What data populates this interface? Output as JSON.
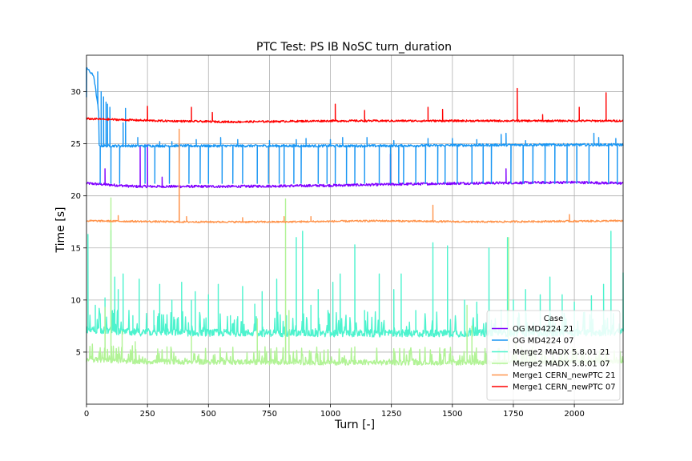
{
  "chart_data": {
    "type": "line",
    "title": "PTC Test: PS IB NoSC turn_duration",
    "xlabel": "Turn [-]",
    "ylabel": "Time [s]",
    "xlim": [
      0,
      2200
    ],
    "ylim": [
      0,
      33.5
    ],
    "xticks": [
      0,
      250,
      500,
      750,
      1000,
      1250,
      1500,
      1750,
      2000
    ],
    "yticks": [
      5,
      10,
      15,
      20,
      25,
      30
    ],
    "grid": true,
    "legend": {
      "title": "Case",
      "placement": "lower-right"
    },
    "series": [
      {
        "name": "OG MD4224 21",
        "color": "#8000ff",
        "baseline": [
          [
            0,
            21.2
          ],
          [
            200,
            20.9
          ],
          [
            600,
            20.9
          ],
          [
            1000,
            21.0
          ],
          [
            1500,
            21.2
          ],
          [
            2000,
            21.3
          ],
          [
            2200,
            21.2
          ]
        ],
        "noise": 0.12,
        "spikes": [
          [
            75,
            22.6
          ],
          [
            220,
            24.8
          ],
          [
            250,
            24.9
          ],
          [
            310,
            21.8
          ],
          [
            1245,
            24.0
          ],
          [
            1720,
            22.6
          ]
        ]
      },
      {
        "name": "OG MD4224 07",
        "color": "#1996f3",
        "baseline": [
          [
            0,
            32.4
          ],
          [
            10,
            32.0
          ],
          [
            30,
            31.5
          ],
          [
            50,
            28.0
          ],
          [
            52,
            24.8
          ],
          [
            600,
            24.8
          ],
          [
            1200,
            24.8
          ],
          [
            1800,
            24.9
          ],
          [
            2200,
            24.9
          ]
        ],
        "noise": 0.12,
        "spikes": [
          [
            0,
            29.5
          ],
          [
            45,
            31.9
          ],
          [
            60,
            30.0
          ],
          [
            70,
            29.5
          ],
          [
            80,
            29.0
          ],
          [
            85,
            28.8
          ],
          [
            95,
            28.5
          ],
          [
            150,
            27.0
          ],
          [
            160,
            28.4
          ],
          [
            210,
            25.6
          ],
          [
            300,
            25.2
          ],
          [
            350,
            25.2
          ],
          [
            450,
            25.4
          ],
          [
            550,
            25.6
          ],
          [
            620,
            25.4
          ],
          [
            750,
            25.3
          ],
          [
            860,
            25.4
          ],
          [
            900,
            25.5
          ],
          [
            1000,
            25.4
          ],
          [
            1050,
            25.6
          ],
          [
            1150,
            25.6
          ],
          [
            1260,
            25.3
          ],
          [
            1400,
            25.5
          ],
          [
            1500,
            25.5
          ],
          [
            1600,
            25.4
          ],
          [
            1700,
            25.9
          ],
          [
            1720,
            26.0
          ],
          [
            1800,
            25.3
          ],
          [
            2080,
            26.0
          ],
          [
            2100,
            25.6
          ],
          [
            2170,
            25.5
          ]
        ],
        "dips": [
          55,
          80,
          100,
          135,
          210,
          240,
          280,
          300,
          340,
          380,
          420,
          465,
          500,
          555,
          600,
          640,
          700,
          745,
          790,
          810,
          850,
          880,
          900,
          950,
          985,
          1020,
          1065,
          1100,
          1140,
          1200,
          1245,
          1280,
          1300,
          1350,
          1390,
          1440,
          1470,
          1520,
          1580,
          1625,
          1660,
          1700,
          1740,
          1790,
          1830,
          1880,
          1920,
          1970,
          2010,
          2060,
          2100,
          2140,
          2175
        ]
      },
      {
        "name": "Merge2 MADX 5.8.01 21",
        "color": "#4df3ce",
        "baseline": [
          [
            0,
            7.2
          ],
          [
            200,
            6.9
          ],
          [
            1000,
            6.8
          ],
          [
            1500,
            6.8
          ],
          [
            2200,
            6.9
          ]
        ],
        "noise": 0.35,
        "spikes": [
          [
            5,
            16.3
          ],
          [
            35,
            9.5
          ],
          [
            75,
            10.2
          ],
          [
            100,
            16.7
          ],
          [
            115,
            12.2
          ],
          [
            130,
            11.0
          ],
          [
            150,
            12.5
          ],
          [
            190,
            8.5
          ],
          [
            215,
            12.0
          ],
          [
            275,
            9.0
          ],
          [
            300,
            11.5
          ],
          [
            350,
            10.0
          ],
          [
            390,
            11.7
          ],
          [
            430,
            10.0
          ],
          [
            445,
            10.8
          ],
          [
            500,
            10.5
          ],
          [
            540,
            11.5
          ],
          [
            590,
            8.5
          ],
          [
            620,
            8.4
          ],
          [
            640,
            11.3
          ],
          [
            690,
            9.6
          ],
          [
            720,
            10.8
          ],
          [
            780,
            12.0
          ],
          [
            820,
            8.5
          ],
          [
            860,
            16.0
          ],
          [
            885,
            16.6
          ],
          [
            920,
            9.5
          ],
          [
            950,
            11.0
          ],
          [
            990,
            9.0
          ],
          [
            1010,
            11.7
          ],
          [
            1040,
            12.5
          ],
          [
            1100,
            15.3
          ],
          [
            1140,
            9.0
          ],
          [
            1200,
            12.5
          ],
          [
            1260,
            11.0
          ],
          [
            1290,
            12.5
          ],
          [
            1350,
            9.0
          ],
          [
            1420,
            15.5
          ],
          [
            1480,
            15.2
          ],
          [
            1550,
            10.0
          ],
          [
            1600,
            9.8
          ],
          [
            1650,
            15.0
          ],
          [
            1700,
            9.0
          ],
          [
            1725,
            16.0
          ],
          [
            1750,
            10.0
          ],
          [
            1800,
            11.0
          ],
          [
            1860,
            10.5
          ],
          [
            1900,
            12.2
          ],
          [
            1950,
            10.5
          ],
          [
            2000,
            9.8
          ],
          [
            2070,
            10.4
          ],
          [
            2120,
            11.5
          ],
          [
            2150,
            16.6
          ],
          [
            2200,
            12.6
          ]
        ]
      },
      {
        "name": "Merge2 MADX 5.8.01 07",
        "color": "#b2f396",
        "baseline": [
          [
            0,
            4.3
          ],
          [
            200,
            4.1
          ],
          [
            1000,
            4.0
          ],
          [
            1600,
            4.0
          ],
          [
            2200,
            4.1
          ]
        ],
        "noise": 0.25,
        "spikes": [
          [
            75,
            9.3
          ],
          [
            100,
            19.8
          ],
          [
            145,
            7.0
          ],
          [
            200,
            6.0
          ],
          [
            330,
            5.5
          ],
          [
            430,
            6.5
          ],
          [
            700,
            8.2
          ],
          [
            815,
            19.7
          ],
          [
            830,
            9.0
          ],
          [
            1100,
            5.5
          ],
          [
            1560,
            9.5
          ],
          [
            1580,
            7.5
          ],
          [
            1730,
            16.0
          ],
          [
            1760,
            6.0
          ],
          [
            1960,
            5.5
          ]
        ]
      },
      {
        "name": "Merge1 CERN_newPTC 21",
        "color": "#ff954e",
        "baseline": [
          [
            0,
            17.6
          ],
          [
            400,
            17.5
          ],
          [
            800,
            17.5
          ],
          [
            1200,
            17.6
          ],
          [
            1600,
            17.5
          ],
          [
            2200,
            17.6
          ]
        ],
        "noise": 0.08,
        "spikes": [
          [
            130,
            18.1
          ],
          [
            380,
            26.4
          ],
          [
            410,
            18.0
          ],
          [
            640,
            17.9
          ],
          [
            810,
            18.0
          ],
          [
            920,
            18.0
          ],
          [
            1420,
            19.1
          ],
          [
            1980,
            18.2
          ]
        ]
      },
      {
        "name": "Merge1 CERN_newPTC 07",
        "color": "#ff0000",
        "baseline": [
          [
            0,
            27.4
          ],
          [
            300,
            27.2
          ],
          [
            600,
            27.1
          ],
          [
            1000,
            27.2
          ],
          [
            1500,
            27.2
          ],
          [
            2200,
            27.2
          ]
        ],
        "noise": 0.09,
        "spikes": [
          [
            250,
            28.6
          ],
          [
            430,
            28.5
          ],
          [
            515,
            28.0
          ],
          [
            1020,
            28.8
          ],
          [
            1140,
            28.2
          ],
          [
            1400,
            28.5
          ],
          [
            1460,
            28.3
          ],
          [
            1765,
            30.3
          ],
          [
            1870,
            27.8
          ],
          [
            2020,
            28.5
          ],
          [
            2130,
            29.9
          ]
        ]
      }
    ]
  }
}
